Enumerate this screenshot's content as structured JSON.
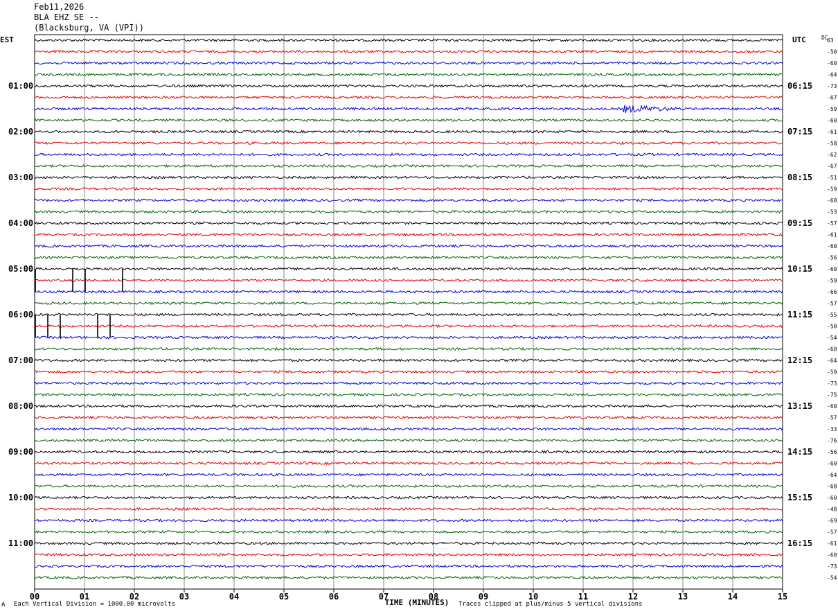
{
  "header": {
    "date": "Feb11,2026",
    "station": "BLA EHZ SE --",
    "location": "(Blacksburg, VA (VPI))"
  },
  "axes": {
    "left_zone": "EST",
    "right_zone": "UTC",
    "dc_label": "DC",
    "x_title": "TIME (MINUTES)"
  },
  "footer": {
    "left_mark": "A",
    "scale_note": "Each Vertical Division = 1000.00 microvolts",
    "clip_note": "Traces clipped at plus/minus 5 vertical divisions"
  },
  "colors": {
    "black": "#000000",
    "red": "#dd0000",
    "blue": "#0000cc",
    "green": "#006600",
    "grid": "#888888"
  },
  "chart_data": {
    "type": "line",
    "x_range_minutes": [
      0,
      15
    ],
    "x_ticks": [
      "00",
      "01",
      "02",
      "03",
      "04",
      "05",
      "06",
      "07",
      "08",
      "09",
      "10",
      "11",
      "12",
      "13",
      "14",
      "15"
    ],
    "trace_count": 48,
    "trace_interval_minutes": 15,
    "trace_color_cycle": [
      "black",
      "red",
      "blue",
      "green"
    ],
    "left_time_labels": [
      {
        "trace": 4,
        "label": "01:00"
      },
      {
        "trace": 8,
        "label": "02:00"
      },
      {
        "trace": 12,
        "label": "03:00"
      },
      {
        "trace": 16,
        "label": "04:00"
      },
      {
        "trace": 20,
        "label": "05:00"
      },
      {
        "trace": 24,
        "label": "06:00"
      },
      {
        "trace": 28,
        "label": "07:00"
      },
      {
        "trace": 32,
        "label": "08:00"
      },
      {
        "trace": 36,
        "label": "09:00"
      },
      {
        "trace": 40,
        "label": "10:00"
      },
      {
        "trace": 44,
        "label": "11:00"
      }
    ],
    "right_time_labels": [
      {
        "trace": 4,
        "label": "06:15"
      },
      {
        "trace": 8,
        "label": "07:15"
      },
      {
        "trace": 12,
        "label": "08:15"
      },
      {
        "trace": 16,
        "label": "09:15"
      },
      {
        "trace": 20,
        "label": "10:15"
      },
      {
        "trace": 24,
        "label": "11:15"
      },
      {
        "trace": 28,
        "label": "12:15"
      },
      {
        "trace": 32,
        "label": "13:15"
      },
      {
        "trace": 36,
        "label": "14:15"
      },
      {
        "trace": 40,
        "label": "15:15"
      },
      {
        "trace": 44,
        "label": "16:15"
      }
    ],
    "dc_offsets": [
      "63",
      "-50",
      "-60",
      "-64",
      "-73",
      "-67",
      "-59",
      "-60",
      "-61",
      "-58",
      "-62",
      "-67",
      "-51",
      "-59",
      "-60",
      "-53",
      "-57",
      "-61",
      "-60",
      "-56",
      "-60",
      "-59",
      "-66",
      "-57",
      "-55",
      "-50",
      "-54",
      "-60",
      "-64",
      "-59",
      "-73",
      "-75",
      "-60",
      "-57",
      "-33",
      "-76",
      "-56",
      "-60",
      "-64",
      "-68",
      "-60",
      "-48",
      "-69",
      "-57",
      "-61",
      "-60",
      "-73",
      "-54"
    ],
    "events": [
      {
        "trace": 6,
        "start_minute": 11.8,
        "end_minute": 13.0,
        "amplitude": "moderate"
      },
      {
        "trace": 33,
        "start_minute": 10.7,
        "end_minute": 10.8,
        "amplitude": "small"
      },
      {
        "trace": 37,
        "start_minute": 5.4,
        "end_minute": 5.5,
        "amplitude": "small"
      },
      {
        "trace": 45,
        "start_minute": 0.25,
        "end_minute": 0.4,
        "amplitude": "small"
      }
    ],
    "spikes": [
      {
        "trace": 21,
        "minutes": [
          0.0,
          0.75,
          1.0,
          1.75
        ]
      },
      {
        "trace": 25,
        "minutes": [
          0.0,
          0.25,
          0.5,
          1.25,
          1.5
        ]
      }
    ],
    "spike_amplitude_divisions": 5
  }
}
